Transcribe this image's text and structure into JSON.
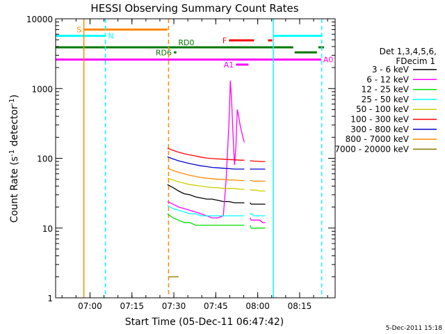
{
  "chart_data": {
    "type": "line",
    "title": "HESSI Observing Summary Count Rates",
    "xlabel": "Start Time (05-Dec-11 06:47:42)",
    "ylabel_main": "Count Rate (s",
    "ylabel_sup1": "-1",
    "ylabel_mid": " detector",
    "ylabel_sup2": "-1",
    "ylabel_end": ")",
    "x_unit": "minutes after 06:47:42",
    "xlim": [
      0,
      100
    ],
    "ylim": [
      1,
      10000
    ],
    "yscale": "log",
    "x_ticks": [
      {
        "x": 12.3,
        "label": "07:00"
      },
      {
        "x": 27.3,
        "label": "07:15"
      },
      {
        "x": 42.3,
        "label": "07:30"
      },
      {
        "x": 57.3,
        "label": "07:45"
      },
      {
        "x": 72.3,
        "label": "08:00"
      },
      {
        "x": 87.3,
        "label": "08:15"
      }
    ],
    "y_ticks": [
      {
        "y": 1,
        "label": "1"
      },
      {
        "y": 10,
        "label": "10"
      },
      {
        "y": 100,
        "label": "100"
      },
      {
        "y": 1000,
        "label": "1000"
      },
      {
        "y": 10000,
        "label": "10000"
      }
    ],
    "legend": {
      "placement": "right",
      "header1": "Det 1,3,4,5,6,",
      "header2": "FDecim 1"
    },
    "series": [
      {
        "name": "3 - 6 keV",
        "color": "#000000",
        "segments": [
          {
            "x": [
              40,
              42,
              44,
              46,
              48,
              50,
              52,
              54,
              56,
              58,
              60,
              62,
              64,
              66,
              67.5
            ],
            "y": [
              42,
              38,
              34,
              31,
              30,
              28,
              27,
              26,
              26,
              25,
              24,
              24,
              23,
              23,
              23
            ]
          },
          {
            "x": [
              69.5,
              70,
              71,
              72,
              73,
              74,
              75
            ],
            "y": [
              23,
              22,
              22,
              22,
              22,
              22,
              22
            ]
          }
        ]
      },
      {
        "name": "6 - 12 keV",
        "color": "#ff00ff",
        "segments": [
          {
            "x": [
              40,
              42,
              44,
              46,
              48,
              50,
              52,
              54,
              56,
              58,
              60,
              61,
              62,
              62.5,
              63,
              63.5,
              64,
              64.5,
              65,
              65.5,
              66,
              67,
              67.5
            ],
            "y": [
              24,
              22,
              20,
              19,
              18,
              17,
              16,
              15,
              14,
              14,
              15,
              50,
              300,
              1300,
              600,
              200,
              80,
              150,
              500,
              400,
              300,
              200,
              170
            ]
          },
          {
            "x": [
              69.5,
              70,
              71,
              72,
              73,
              74,
              75
            ],
            "y": [
              14,
              13,
              13,
              13,
              13,
              12,
              12
            ]
          }
        ]
      },
      {
        "name": "12 - 25 keV",
        "color": "#00dd00",
        "segments": [
          {
            "x": [
              40,
              42,
              44,
              46,
              48,
              50,
              52,
              54,
              56,
              58,
              60,
              62,
              64,
              66,
              67.5
            ],
            "y": [
              16,
              14,
              13,
              12,
              12,
              11,
              11,
              11,
              11,
              11,
              11,
              11,
              11,
              11,
              11
            ]
          },
          {
            "x": [
              69.5,
              70,
              71,
              72,
              73,
              74,
              75
            ],
            "y": [
              11,
              10,
              10,
              10,
              10,
              10,
              10
            ]
          }
        ]
      },
      {
        "name": "25 - 50 keV",
        "color": "#00ffff",
        "segments": [
          {
            "x": [
              40,
              42,
              44,
              46,
              48,
              50,
              52,
              54,
              56,
              58,
              60,
              62,
              64,
              66,
              67.5
            ],
            "y": [
              21,
              19,
              18,
              17,
              16,
              16,
              15,
              15,
              15,
              15,
              15,
              15,
              15,
              15,
              15
            ]
          },
          {
            "x": [
              69.5,
              70,
              71,
              72,
              73,
              74,
              75
            ],
            "y": [
              16,
              16,
              15,
              15,
              15,
              15,
              15
            ]
          }
        ]
      },
      {
        "name": "50 - 100 keV",
        "color": "#cccc00",
        "segments": [
          {
            "x": [
              40,
              42,
              44,
              46,
              48,
              50,
              52,
              54,
              56,
              58,
              60,
              62,
              64,
              66,
              67.5
            ],
            "y": [
              52,
              49,
              46,
              44,
              42,
              41,
              40,
              39,
              38,
              38,
              37,
              37,
              37,
              36,
              36
            ]
          },
          {
            "x": [
              69.5,
              70,
              71,
              72,
              73,
              74,
              75
            ],
            "y": [
              36,
              35,
              35,
              35,
              34,
              34,
              34
            ]
          }
        ]
      },
      {
        "name": "100 - 300 keV",
        "color": "#ff0000",
        "segments": [
          {
            "x": [
              40,
              42,
              44,
              46,
              48,
              50,
              52,
              54,
              56,
              58,
              60,
              62,
              64,
              66,
              67.5
            ],
            "y": [
              140,
              130,
              122,
              116,
              112,
              108,
              104,
              101,
              99,
              98,
              97,
              96,
              95,
              94,
              94
            ]
          },
          {
            "x": [
              69.5,
              70,
              71,
              72,
              73,
              74,
              75
            ],
            "y": [
              92,
              92,
              91,
              91,
              90,
              90,
              90
            ]
          }
        ]
      },
      {
        "name": "300 - 800 keV",
        "color": "#0000cc",
        "segments": [
          {
            "x": [
              40,
              42,
              44,
              46,
              48,
              50,
              52,
              54,
              56,
              58,
              60,
              62,
              64,
              66,
              67.5
            ],
            "y": [
              105,
              98,
              92,
              88,
              84,
              81,
              78,
              76,
              74,
              73,
              72,
              71,
              70,
              70,
              70
            ]
          },
          {
            "x": [
              69.5,
              70,
              71,
              72,
              73,
              74,
              75
            ],
            "y": [
              70,
              70,
              70,
              70,
              70,
              70,
              70
            ]
          }
        ]
      },
      {
        "name": "800 - 7000 keV",
        "color": "#ff8800",
        "segments": [
          {
            "x": [
              40,
              42,
              44,
              46,
              48,
              50,
              52,
              54,
              56,
              58,
              60,
              62,
              64,
              66,
              67.5
            ],
            "y": [
              72,
              67,
              63,
              60,
              57,
              55,
              53,
              52,
              51,
              50,
              50,
              49,
              49,
              48,
              48
            ]
          },
          {
            "x": [
              69.5,
              70,
              71,
              72,
              73,
              74,
              75
            ],
            "y": [
              48,
              48,
              47,
              47,
              47,
              47,
              47
            ]
          }
        ]
      },
      {
        "name": "7000 - 20000 keV",
        "color": "#887700",
        "segments": [
          {
            "x": [
              40.5,
              41,
              41.5,
              42,
              42.5,
              43,
              43.5,
              44
            ],
            "y": [
              2,
              2,
              2,
              2,
              2,
              2,
              2,
              2
            ]
          }
        ]
      }
    ],
    "flag_bars": [
      {
        "label": "S",
        "label_pos": "left",
        "color": "#ff8800",
        "x0": 10,
        "x1": 40,
        "y": 7000
      },
      {
        "label": "N",
        "label_pos": "right",
        "color": "#00ffff",
        "x0": 0,
        "x1": 18,
        "y": 5700
      },
      {
        "label": "",
        "label_pos": "none",
        "color": "#00ffff",
        "x0": 78,
        "x1": 95,
        "y": 5700
      },
      {
        "label": "F",
        "label_pos": "left",
        "color": "#ff0000",
        "x0": 62,
        "x1": 71,
        "y": 4900
      },
      {
        "label": "",
        "label_pos": "none",
        "color": "#ff0000",
        "x0": 76,
        "x1": 77.5,
        "y": 4900
      },
      {
        "label": "RD0",
        "label_pos": "above-right",
        "color": "#007700",
        "x0": 0,
        "x1": 85,
        "y": 3900
      },
      {
        "label": "",
        "label_pos": "none",
        "color": "#007700",
        "x0": 94,
        "x1": 96,
        "y": 3900
      },
      {
        "label": "",
        "label_pos": "none",
        "color": "#007700",
        "x0": 85.5,
        "x1": 93.5,
        "y": 3300
      },
      {
        "label": "RD6",
        "label_pos": "left",
        "color": "#007700",
        "x0": 42.3,
        "x1": 43.2,
        "y": 3300
      },
      {
        "label": "A0",
        "label_pos": "right",
        "color": "#ff00ff",
        "x0": 0,
        "x1": 95,
        "y": 2600
      },
      {
        "label": "A1",
        "label_pos": "left",
        "color": "#ff00ff",
        "x0": 64.5,
        "x1": 69,
        "y": 2200
      }
    ],
    "vlines": [
      {
        "x": 10.1,
        "color": "#ff8800",
        "dash": false
      },
      {
        "x": 17.8,
        "color": "#00ffff",
        "dash": true
      },
      {
        "x": 40.4,
        "color": "#ff8800",
        "dash": true
      },
      {
        "x": 77.9,
        "color": "#00ffff",
        "dash": false
      },
      {
        "x": 95.2,
        "color": "#00ffff",
        "dash": true
      }
    ]
  },
  "footer": {
    "timestamp": "5-Dec-2011 15:18"
  }
}
